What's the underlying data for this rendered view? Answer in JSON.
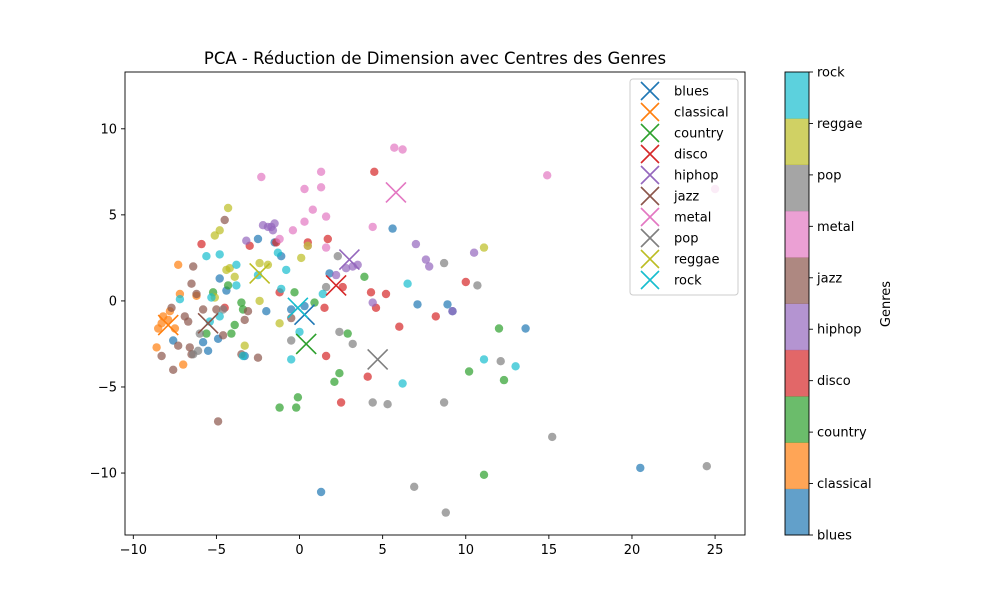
{
  "chart_data": {
    "type": "scatter",
    "title": "PCA - Réduction de Dimension avec Centres des Genres",
    "xlim": [
      -10.5,
      26.8
    ],
    "ylim": [
      -13.6,
      13.3
    ],
    "x_ticks": [
      -10,
      -5,
      0,
      5,
      10,
      15,
      20,
      25
    ],
    "y_ticks": [
      -10,
      -5,
      0,
      5,
      10
    ],
    "grid": false,
    "legend_position": "top-right",
    "colorbar": {
      "label": "Genres",
      "labels": [
        "blues",
        "classical",
        "country",
        "disco",
        "hiphop",
        "jazz",
        "metal",
        "pop",
        "reggae",
        "rock"
      ]
    },
    "genres": [
      {
        "name": "blues",
        "color": "#1f77b4",
        "center": [
          0.3,
          -0.8
        ]
      },
      {
        "name": "classical",
        "color": "#ff7f0e",
        "center": [
          -7.9,
          -1.4
        ]
      },
      {
        "name": "country",
        "color": "#2ca02c",
        "center": [
          0.4,
          -2.5
        ]
      },
      {
        "name": "disco",
        "color": "#d62728",
        "center": [
          2.2,
          0.9
        ]
      },
      {
        "name": "hiphop",
        "color": "#9467bd",
        "center": [
          3.0,
          2.4
        ]
      },
      {
        "name": "jazz",
        "color": "#8c564b",
        "center": [
          -5.5,
          -1.3
        ]
      },
      {
        "name": "metal",
        "color": "#e377c2",
        "center": [
          5.8,
          6.3
        ]
      },
      {
        "name": "pop",
        "color": "#7f7f7f",
        "center": [
          4.7,
          -3.4
        ]
      },
      {
        "name": "reggae",
        "color": "#bcbd22",
        "center": [
          -2.4,
          1.6
        ]
      },
      {
        "name": "rock",
        "color": "#17becf",
        "center": [
          -0.1,
          -0.4
        ]
      }
    ],
    "points": {
      "blues": [
        [
          20.5,
          -9.7
        ],
        [
          13.6,
          -1.6
        ],
        [
          1.3,
          -11.1
        ],
        [
          9.2,
          -0.6
        ],
        [
          8.9,
          -0.2
        ],
        [
          7.1,
          -0.2
        ],
        [
          5.6,
          4.2
        ],
        [
          1.8,
          1.6
        ],
        [
          -1.1,
          2.6
        ],
        [
          -2.5,
          3.6
        ],
        [
          -4.4,
          0.6
        ],
        [
          -4.8,
          1.3
        ],
        [
          -3.3,
          -3.2
        ],
        [
          -5.5,
          -2.9
        ],
        [
          -5.8,
          -2.4
        ],
        [
          -4.9,
          -2.2
        ],
        [
          -7.6,
          -2.3
        ],
        [
          -0.5,
          -0.5
        ],
        [
          -1.5,
          3.4
        ],
        [
          0.3,
          -0.3
        ],
        [
          -2.0,
          -0.6
        ]
      ],
      "classical": [
        [
          -8.6,
          -2.7
        ],
        [
          -8.3,
          -1.3
        ],
        [
          -7.5,
          -1.6
        ],
        [
          -8.2,
          -0.9
        ],
        [
          -7.8,
          -0.6
        ],
        [
          -7.0,
          -3.7
        ],
        [
          -7.2,
          0.4
        ],
        [
          -7.3,
          2.1
        ],
        [
          -6.2,
          0.3
        ],
        [
          -8.5,
          -1.6
        ],
        [
          -7.9,
          -1.1
        ]
      ],
      "country": [
        [
          -1.2,
          -6.2
        ],
        [
          -0.2,
          -6.2
        ],
        [
          -0.1,
          -5.6
        ],
        [
          2.1,
          -4.7
        ],
        [
          2.4,
          -4.2
        ],
        [
          10.2,
          -4.1
        ],
        [
          11.1,
          -10.1
        ],
        [
          12.3,
          -4.6
        ],
        [
          12.0,
          -1.6
        ],
        [
          2.9,
          -1.9
        ],
        [
          -5.6,
          -1.9
        ],
        [
          -4.1,
          -1.9
        ],
        [
          -3.9,
          -1.4
        ],
        [
          -3.5,
          -0.1
        ],
        [
          -3.4,
          -0.5
        ],
        [
          -4.3,
          0.9
        ],
        [
          -0.3,
          0.5
        ],
        [
          0.9,
          -0.1
        ],
        [
          3.9,
          1.4
        ],
        [
          -5.2,
          0.5
        ]
      ],
      "disco": [
        [
          4.5,
          7.5
        ],
        [
          4.3,
          0.5
        ],
        [
          4.6,
          -0.4
        ],
        [
          5.2,
          0.4
        ],
        [
          6.0,
          -1.5
        ],
        [
          8.2,
          -0.9
        ],
        [
          10.0,
          1.1
        ],
        [
          4.1,
          -4.4
        ],
        [
          2.5,
          -5.9
        ],
        [
          1.6,
          -3.2
        ],
        [
          1.5,
          -0.4
        ],
        [
          2.6,
          0.8
        ],
        [
          1.7,
          3.6
        ],
        [
          0.5,
          3.4
        ],
        [
          -1.4,
          3.4
        ],
        [
          -3.0,
          3.2
        ],
        [
          -5.9,
          3.3
        ],
        [
          -1.2,
          0.5
        ],
        [
          -4.5,
          -0.4
        ]
      ],
      "hiphop": [
        [
          3.2,
          2.0
        ],
        [
          2.8,
          1.9
        ],
        [
          2.2,
          1.5
        ],
        [
          3.5,
          2.1
        ],
        [
          7.0,
          3.3
        ],
        [
          7.6,
          2.4
        ],
        [
          7.8,
          2.0
        ],
        [
          10.5,
          2.8
        ],
        [
          9.2,
          -0.6
        ],
        [
          4.4,
          -0.1
        ],
        [
          -1.7,
          4.3
        ],
        [
          -1.6,
          4.1
        ],
        [
          -1.9,
          4.3
        ],
        [
          -2.2,
          4.4
        ],
        [
          -3.2,
          3.5
        ],
        [
          -1.5,
          4.5
        ]
      ],
      "jazz": [
        [
          -8.3,
          -3.2
        ],
        [
          -7.3,
          -2.6
        ],
        [
          -6.5,
          -3.1
        ],
        [
          -7.6,
          -4.0
        ],
        [
          -6.6,
          -2.7
        ],
        [
          -6.7,
          -1.2
        ],
        [
          -6.9,
          -0.9
        ],
        [
          -5.8,
          -0.5
        ],
        [
          -6.2,
          0.4
        ],
        [
          -6.5,
          1.0
        ],
        [
          -6.4,
          2.0
        ],
        [
          -4.5,
          4.7
        ],
        [
          -5.0,
          -0.5
        ],
        [
          -4.6,
          -2.0
        ],
        [
          -3.5,
          -3.1
        ],
        [
          -3.3,
          -1.1
        ],
        [
          -3.1,
          -0.6
        ],
        [
          -2.5,
          -3.3
        ],
        [
          -0.5,
          -1.0
        ],
        [
          -4.9,
          -7.0
        ],
        [
          -7.7,
          -0.4
        ]
      ],
      "metal": [
        [
          5.7,
          8.9
        ],
        [
          6.2,
          8.8
        ],
        [
          1.3,
          7.5
        ],
        [
          -2.3,
          7.2
        ],
        [
          0.3,
          6.5
        ],
        [
          1.3,
          6.6
        ],
        [
          14.9,
          7.3
        ],
        [
          25.0,
          6.5
        ],
        [
          0.8,
          5.3
        ],
        [
          1.6,
          4.9
        ],
        [
          0.3,
          4.6
        ],
        [
          -0.4,
          4.1
        ],
        [
          4.4,
          4.3
        ],
        [
          1.6,
          3.1
        ],
        [
          0.5,
          3.2
        ],
        [
          -1.2,
          3.6
        ]
      ],
      "pop": [
        [
          15.2,
          -7.9
        ],
        [
          24.5,
          -9.6
        ],
        [
          8.8,
          -12.3
        ],
        [
          6.9,
          -10.8
        ],
        [
          8.7,
          -5.9
        ],
        [
          5.3,
          -6.0
        ],
        [
          4.4,
          -5.9
        ],
        [
          12.1,
          -3.5
        ],
        [
          3.2,
          -2.5
        ],
        [
          2.4,
          -1.8
        ],
        [
          1.6,
          0.8
        ],
        [
          2.3,
          2.6
        ],
        [
          8.7,
          2.2
        ],
        [
          10.7,
          0.9
        ],
        [
          -6.4,
          -3.1
        ],
        [
          -6.1,
          -2.9
        ],
        [
          -6.0,
          -1.9
        ],
        [
          -4.6,
          -0.5
        ],
        [
          -0.5,
          -2.3
        ]
      ],
      "reggae": [
        [
          -4.3,
          5.4
        ],
        [
          -4.8,
          4.1
        ],
        [
          -5.1,
          3.8
        ],
        [
          -2.4,
          2.2
        ],
        [
          -1.9,
          2.1
        ],
        [
          0.1,
          2.5
        ],
        [
          0.5,
          3.2
        ],
        [
          -4.2,
          1.9
        ],
        [
          -3.9,
          1.4
        ],
        [
          -2.4,
          0.0
        ],
        [
          -1.2,
          -1.3
        ],
        [
          -3.3,
          -2.6
        ],
        [
          11.1,
          3.1
        ],
        [
          -4.4,
          1.8
        ],
        [
          -5.1,
          0.2
        ]
      ],
      "rock": [
        [
          -2.5,
          1.5
        ],
        [
          -0.8,
          1.8
        ],
        [
          -1.3,
          2.8
        ],
        [
          -4.8,
          2.7
        ],
        [
          -3.8,
          2.1
        ],
        [
          -5.6,
          2.6
        ],
        [
          -4.8,
          -0.9
        ],
        [
          -1.1,
          0.7
        ],
        [
          -0.5,
          -3.4
        ],
        [
          0.0,
          -1.8
        ],
        [
          1.4,
          0.4
        ],
        [
          6.2,
          -4.8
        ],
        [
          6.5,
          1.0
        ],
        [
          11.1,
          -3.4
        ],
        [
          13.0,
          -3.8
        ],
        [
          -3.4,
          -3.2
        ],
        [
          -7.2,
          0.1
        ],
        [
          -5.4,
          -1.2
        ],
        [
          -5.3,
          0.2
        ],
        [
          -3.8,
          0.9
        ]
      ]
    }
  }
}
